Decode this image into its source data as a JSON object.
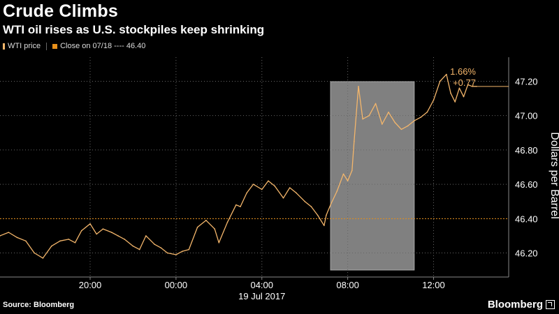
{
  "header": {
    "title": "Crude Climbs",
    "subtitle": "WTI oil rises as U.S. stockpiles keep shrinking"
  },
  "legend": {
    "series_label": "WTI price",
    "close_label": "Close on 07/18 ---- 46.40"
  },
  "footer": {
    "source": "Source: Bloomberg",
    "brand": "Bloomberg"
  },
  "colors": {
    "background": "#000000",
    "price_line": "#f4b66b",
    "close_line": "#e8901a",
    "highlight": "#808080",
    "grid": "#666666"
  },
  "chart_data": {
    "type": "line",
    "ylabel": "Dollars per Barrel",
    "y_ticks": [
      "46.20",
      "46.40",
      "46.60",
      "46.80",
      "47.00",
      "47.20"
    ],
    "ylim": [
      46.06,
      47.34
    ],
    "x_ticks": [
      "20:00",
      "00:00",
      "04:00",
      "08:00",
      "12:00"
    ],
    "x_date_label": "19 Jul 2017",
    "xlim_hours": [
      15.8,
      39.5
    ],
    "reference_line": {
      "label": "Close on 07/18",
      "value": 46.4
    },
    "highlight_window_hours": [
      31.2,
      35.1
    ],
    "annotation": {
      "pct": "1.66%",
      "chg": "+0.77",
      "value": 47.17
    },
    "series": [
      {
        "name": "WTI price",
        "x": [
          15.8,
          16.2,
          16.6,
          17.0,
          17.4,
          17.8,
          18.2,
          18.6,
          19.0,
          19.3,
          19.6,
          20.0,
          20.3,
          20.6,
          21.0,
          21.3,
          21.6,
          22.0,
          22.3,
          22.6,
          23.0,
          23.3,
          23.6,
          24.0,
          24.3,
          24.6,
          25.0,
          25.4,
          25.8,
          26.0,
          26.4,
          26.8,
          27.0,
          27.3,
          27.6,
          28.0,
          28.3,
          28.6,
          29.0,
          29.3,
          29.6,
          30.0,
          30.3,
          30.6,
          30.9,
          31.0,
          31.2,
          31.5,
          31.8,
          32.0,
          32.2,
          32.3,
          32.5,
          32.7,
          33.0,
          33.3,
          33.6,
          33.9,
          34.2,
          34.5,
          34.8,
          35.1,
          35.4,
          35.7,
          36.0,
          36.3,
          36.6,
          36.8,
          37.0,
          37.2,
          37.4,
          37.6,
          37.8,
          38.0
        ],
        "values": [
          46.3,
          46.32,
          46.29,
          46.27,
          46.2,
          46.17,
          46.24,
          46.27,
          46.28,
          46.26,
          46.33,
          46.37,
          46.31,
          46.34,
          46.32,
          46.3,
          46.28,
          46.24,
          46.22,
          46.3,
          46.25,
          46.23,
          46.2,
          46.19,
          46.21,
          46.22,
          46.35,
          46.39,
          46.34,
          46.26,
          46.38,
          46.48,
          46.47,
          46.55,
          46.6,
          46.57,
          46.62,
          46.59,
          46.52,
          46.58,
          46.55,
          46.5,
          46.47,
          46.42,
          46.36,
          46.42,
          46.48,
          46.56,
          46.66,
          46.62,
          46.68,
          46.85,
          47.17,
          46.98,
          47.0,
          47.07,
          46.95,
          47.02,
          46.96,
          46.92,
          46.94,
          46.97,
          46.99,
          47.02,
          47.09,
          47.2,
          47.24,
          47.13,
          47.08,
          47.16,
          47.11,
          47.18,
          47.17,
          47.17
        ]
      }
    ]
  }
}
